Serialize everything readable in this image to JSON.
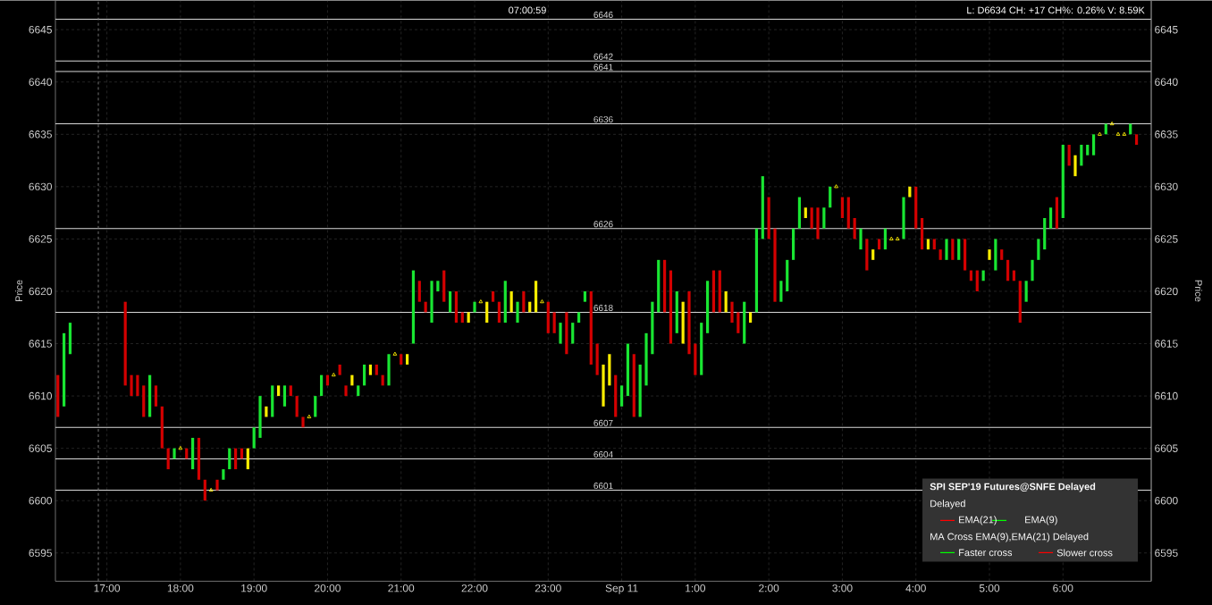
{
  "chart_data": {
    "type": "bar",
    "ylabel": "Price",
    "y2label": "Price",
    "annotations": [
      "07:00:59",
      "L: D6634 CH: +17 CH%: 0.26% V: 8.59K",
      "SPI SEP'19 Futures@SNFE Delayed",
      "Delayed",
      "EMA(21)",
      "EMA(9)",
      "MA Cross EMA(9),EMA(21) Delayed",
      "Faster cross",
      "Slower cross"
    ],
    "series": [
      {
        "x": [
          "2019-09-10T16:20",
          "2019-09-10T16:25",
          "2019-09-10T16:30",
          "2019-09-10T17:15",
          "2019-09-10T17:20",
          "2019-09-10T17:25",
          "2019-09-10T17:30",
          "2019-09-10T17:35",
          "2019-09-10T17:40",
          "2019-09-10T17:45",
          "2019-09-10T17:50",
          "2019-09-10T17:55",
          "2019-09-10T18:05",
          "2019-09-10T18:10",
          "2019-09-10T18:15",
          "2019-09-10T18:20",
          "2019-09-10T18:30",
          "2019-09-10T18:35",
          "2019-09-10T18:40",
          "2019-09-10T18:45",
          "2019-09-10T18:50",
          "2019-09-10T18:55",
          "2019-09-10T19:00",
          "2019-09-10T19:05",
          "2019-09-10T19:10",
          "2019-09-10T19:15",
          "2019-09-10T19:20",
          "2019-09-10T19:25",
          "2019-09-10T19:30",
          "2019-09-10T19:35",
          "2019-09-10T19:40",
          "2019-09-10T19:50",
          "2019-09-10T19:55",
          "2019-09-10T20:00",
          "2019-09-10T20:10",
          "2019-09-10T20:15",
          "2019-09-10T20:20",
          "2019-09-10T20:25",
          "2019-09-10T20:30",
          "2019-09-10T20:35",
          "2019-09-10T20:40",
          "2019-09-10T20:45",
          "2019-09-10T20:50",
          "2019-09-10T21:00",
          "2019-09-10T21:05",
          "2019-09-10T21:10",
          "2019-09-10T21:15",
          "2019-09-10T21:20",
          "2019-09-10T21:25",
          "2019-09-10T21:30",
          "2019-09-10T21:35",
          "2019-09-10T21:40",
          "2019-09-10T21:45",
          "2019-09-10T21:50",
          "2019-09-10T21:55",
          "2019-09-10T22:00",
          "2019-09-10T22:10",
          "2019-09-10T22:15",
          "2019-09-10T22:20",
          "2019-09-10T22:25",
          "2019-09-10T22:30",
          "2019-09-10T22:35",
          "2019-09-10T22:40",
          "2019-09-10T22:45",
          "2019-09-10T22:50",
          "2019-09-10T23:00",
          "2019-09-10T23:05",
          "2019-09-10T23:10",
          "2019-09-10T23:15",
          "2019-09-10T23:20",
          "2019-09-10T23:25",
          "2019-09-10T23:30",
          "2019-09-10T23:35",
          "2019-09-10T23:40",
          "2019-09-10T23:45",
          "2019-09-10T23:50",
          "2019-09-10T23:55",
          "2019-09-11T00:00",
          "2019-09-11T00:05",
          "2019-09-11T00:10",
          "2019-09-11T00:15",
          "2019-09-11T00:20",
          "2019-09-11T00:25",
          "2019-09-11T00:30",
          "2019-09-11T00:35",
          "2019-09-11T00:40",
          "2019-09-11T00:45",
          "2019-09-11T00:50",
          "2019-09-11T00:55",
          "2019-09-11T01:00",
          "2019-09-11T01:05",
          "2019-09-11T01:10",
          "2019-09-11T01:15",
          "2019-09-11T01:20",
          "2019-09-11T01:25",
          "2019-09-11T01:30",
          "2019-09-11T01:35",
          "2019-09-11T01:40",
          "2019-09-11T01:45",
          "2019-09-11T01:50",
          "2019-09-11T01:55",
          "2019-09-11T02:00",
          "2019-09-11T02:05",
          "2019-09-11T02:10",
          "2019-09-11T02:15",
          "2019-09-11T02:20",
          "2019-09-11T02:25",
          "2019-09-11T02:30",
          "2019-09-11T02:35",
          "2019-09-11T02:40",
          "2019-09-11T02:45",
          "2019-09-11T02:50",
          "2019-09-11T03:00",
          "2019-09-11T03:05",
          "2019-09-11T03:10",
          "2019-09-11T03:15",
          "2019-09-11T03:20",
          "2019-09-11T03:25",
          "2019-09-11T03:30",
          "2019-09-11T03:35",
          "2019-09-11T03:50",
          "2019-09-11T03:55",
          "2019-09-11T04:00",
          "2019-09-11T04:05",
          "2019-09-11T04:10",
          "2019-09-11T04:15",
          "2019-09-11T04:20",
          "2019-09-11T04:25",
          "2019-09-11T04:30",
          "2019-09-11T04:35",
          "2019-09-11T04:40",
          "2019-09-11T04:45",
          "2019-09-11T04:50",
          "2019-09-11T04:55",
          "2019-09-11T05:00",
          "2019-09-11T05:05",
          "2019-09-11T05:10",
          "2019-09-11T05:15",
          "2019-09-11T05:20",
          "2019-09-11T05:25",
          "2019-09-11T05:30",
          "2019-09-11T05:35",
          "2019-09-11T05:40",
          "2019-09-11T05:45",
          "2019-09-11T05:50",
          "2019-09-11T05:55",
          "2019-09-11T06:00",
          "2019-09-11T06:05",
          "2019-09-11T06:10",
          "2019-09-11T06:15",
          "2019-09-11T06:20",
          "2019-09-11T06:25",
          "2019-09-11T06:35",
          "2019-09-11T06:55",
          "2019-09-11T07:00"
        ],
        "base": [
          6608,
          6609,
          6614,
          6611,
          6610,
          6610,
          6608,
          6608,
          6609,
          6605,
          6603,
          6604,
          6604,
          6603,
          6602,
          6600,
          6601,
          6602,
          6603,
          6603,
          6604,
          6603,
          6605,
          6606,
          6608,
          6608,
          6610,
          6609,
          6610,
          6608,
          6607,
          6608,
          6610,
          6611,
          6612,
          6610,
          6611,
          6610,
          6611,
          6612,
          6612,
          6611,
          6611,
          6613,
          6613,
          6615,
          6619,
          6618,
          6617,
          6620,
          6619,
          6618,
          6617,
          6617,
          6617,
          6618,
          6617,
          6619,
          6617,
          6617,
          6618,
          6617,
          6618,
          6618,
          6618,
          6616,
          6616,
          6615,
          6614,
          6615,
          6617,
          6619,
          6613,
          6612,
          6609,
          6611,
          6608,
          6609,
          6610,
          6608,
          6608,
          6611,
          6614,
          6618,
          6618,
          6615,
          6616,
          6615,
          6614,
          6612,
          6612,
          6616,
          6618,
          6618,
          6618,
          6617,
          6616,
          6615,
          6617,
          6618,
          6625,
          6625,
          6619,
          6619,
          6620,
          6623,
          6626,
          6627,
          6626,
          6625,
          6626,
          6628,
          6627,
          6626,
          6625,
          6624,
          6622,
          6623,
          6624,
          6624,
          6625,
          6629,
          6626,
          6624,
          6624,
          6624,
          6623,
          6623,
          6623,
          6623,
          6622,
          6621,
          6620,
          6621,
          6623,
          6622,
          6623,
          6621,
          6621,
          6617,
          6619,
          6621,
          6623,
          6624,
          6626,
          6626,
          6627,
          6632,
          6631,
          6632,
          6633,
          6633,
          6635,
          6635,
          6634
        ],
        "values": [
          4,
          7,
          3,
          8,
          2,
          2,
          3,
          4,
          2,
          4,
          2,
          1,
          1,
          3,
          4,
          2,
          1,
          1,
          2,
          2,
          1,
          2,
          2,
          4,
          1,
          3,
          1,
          2,
          1,
          2,
          1,
          2,
          2,
          1,
          1,
          1,
          1,
          1,
          2,
          1,
          1,
          1,
          3,
          1,
          1,
          7,
          2,
          1,
          4,
          1,
          3,
          2,
          3,
          1,
          1,
          1,
          2,
          1,
          2,
          4,
          2,
          2,
          2,
          1,
          3,
          3,
          2,
          2,
          4,
          2,
          1,
          1,
          7,
          3,
          4,
          3,
          4,
          2,
          5,
          6,
          5,
          5,
          5,
          5,
          5,
          7,
          4,
          4,
          6,
          3,
          5,
          5,
          4,
          4,
          2,
          2,
          2,
          4,
          1,
          8,
          6,
          4,
          7,
          2,
          3,
          3,
          3,
          1,
          2,
          3,
          2,
          2,
          2,
          3,
          2,
          2,
          3,
          1,
          1,
          2,
          4,
          1,
          4,
          3,
          1,
          1,
          1,
          2,
          2,
          2,
          3,
          1,
          2,
          1,
          1,
          3,
          1,
          2,
          1,
          4,
          2,
          2,
          2,
          3,
          2,
          3,
          7,
          2,
          2,
          2,
          1,
          2,
          1,
          1,
          1
        ],
        "colors": [
          "#d40000",
          "#19e632",
          "#19e632",
          "#d40000",
          "#d40000",
          "#d40000",
          "#d40000",
          "#19e632",
          "#d40000",
          "#d40000",
          "#d40000",
          "#19e632",
          "#d40000",
          "#19e632",
          "#d40000",
          "#d40000",
          "#d40000",
          "#19e632",
          "#19e632",
          "#d40000",
          "#d40000",
          "#ffee00",
          "#19e632",
          "#19e632",
          "#ffee00",
          "#19e632",
          "#ffee00",
          "#19e632",
          "#d40000",
          "#d40000",
          "#d40000",
          "#19e632",
          "#19e632",
          "#d40000",
          "#d40000",
          "#d40000",
          "#ffee00",
          "#19e632",
          "#19e632",
          "#ffee00",
          "#d40000",
          "#d40000",
          "#19e632",
          "#d40000",
          "#ffee00",
          "#19e632",
          "#d40000",
          "#d40000",
          "#19e632",
          "#19e632",
          "#d40000",
          "#19e632",
          "#d40000",
          "#d40000",
          "#ffee00",
          "#19e632",
          "#ffee00",
          "#d40000",
          "#d40000",
          "#19e632",
          "#ffee00",
          "#19e632",
          "#d40000",
          "#ffee00",
          "#ffee00",
          "#d40000",
          "#d40000",
          "#19e632",
          "#d40000",
          "#19e632",
          "#19e632",
          "#19e632",
          "#d40000",
          "#d40000",
          "#ffee00",
          "#ffee00",
          "#d40000",
          "#19e632",
          "#19e632",
          "#d40000",
          "#19e632",
          "#19e632",
          "#19e632",
          "#19e632",
          "#d40000",
          "#d40000",
          "#19e632",
          "#ffee00",
          "#d40000",
          "#d40000",
          "#19e632",
          "#19e632",
          "#d40000",
          "#d40000",
          "#ffee00",
          "#d40000",
          "#d40000",
          "#19e632",
          "#ffee00",
          "#19e632",
          "#19e632",
          "#d40000",
          "#d40000",
          "#19e632",
          "#19e632",
          "#19e632",
          "#19e632",
          "#ffee00",
          "#d40000",
          "#d40000",
          "#19e632",
          "#19e632",
          "#d40000",
          "#d40000",
          "#d40000",
          "#19e632",
          "#d40000",
          "#ffee00",
          "#d40000",
          "#19e632",
          "#19e632",
          "#ffee00",
          "#d40000",
          "#d40000",
          "#ffee00",
          "#d40000",
          "#d40000",
          "#19e632",
          "#d40000",
          "#19e632",
          "#d40000",
          "#d40000",
          "#d40000",
          "#19e632",
          "#ffee00",
          "#19e632",
          "#d40000",
          "#d40000",
          "#d40000",
          "#d40000",
          "#19e632",
          "#19e632",
          "#19e632",
          "#19e632",
          "#19e632",
          "#d40000",
          "#19e632",
          "#d40000",
          "#ffee00",
          "#19e632",
          "#19e632",
          "#19e632",
          "#19e632",
          "#19e632",
          "#d40000"
        ]
      },
      {
        "type": "scatter",
        "color": "#ffee00",
        "marker": "triangle",
        "x": [
          "2019-09-10T18:00",
          "2019-09-10T18:25",
          "2019-09-10T19:45",
          "2019-09-10T20:05",
          "2019-09-10T20:55",
          "2019-09-10T22:05",
          "2019-09-10T22:55",
          "2019-09-11T02:55",
          "2019-09-11T03:40",
          "2019-09-11T03:45",
          "2019-09-11T06:30",
          "2019-09-11T06:40",
          "2019-09-11T06:45",
          "2019-09-11T06:50"
        ],
        "values": [
          6605,
          6601,
          6608,
          6612,
          6614,
          6619,
          6619,
          6630,
          6625,
          6625,
          6635,
          6636,
          6635,
          6635
        ]
      }
    ],
    "xlim": [
      "2019-09-10T16:18",
      "2019-09-11T07:12"
    ],
    "xticks": [
      {
        "value": "2019-09-10T17:00",
        "label": "17:00"
      },
      {
        "value": "2019-09-10T18:00",
        "label": "18:00"
      },
      {
        "value": "2019-09-10T19:00",
        "label": "19:00"
      },
      {
        "value": "2019-09-10T20:00",
        "label": "20:00"
      },
      {
        "value": "2019-09-10T21:00",
        "label": "21:00"
      },
      {
        "value": "2019-09-10T22:00",
        "label": "22:00"
      },
      {
        "value": "2019-09-10T23:00",
        "label": "23:00"
      },
      {
        "value": "2019-09-11T00:00",
        "label": "Sep 11"
      },
      {
        "value": "2019-09-11T01:00",
        "label": "1:00"
      },
      {
        "value": "2019-09-11T02:00",
        "label": "2:00"
      },
      {
        "value": "2019-09-11T03:00",
        "label": "3:00"
      },
      {
        "value": "2019-09-11T04:00",
        "label": "4:00"
      },
      {
        "value": "2019-09-11T05:00",
        "label": "5:00"
      },
      {
        "value": "2019-09-11T06:00",
        "label": "6:00"
      }
    ],
    "ylim": [
      6592.3,
      6647.8
    ],
    "yticks": [
      6595,
      6600,
      6605,
      6610,
      6615,
      6620,
      6625,
      6630,
      6635,
      6640,
      6645
    ],
    "y2lim": [
      6592.3,
      6647.8
    ],
    "y2ticks": [
      6595,
      6600,
      6605,
      6610,
      6615,
      6620,
      6625,
      6630,
      6635,
      6640,
      6645
    ],
    "ref_lines": [
      {
        "axis": "y",
        "value": 6646,
        "label": "6646",
        "color": "#d8d8d8"
      },
      {
        "axis": "y",
        "value": 6642,
        "label": "6642",
        "color": "#d8d8d8"
      },
      {
        "axis": "y",
        "value": 6641,
        "label": "6641",
        "color": "#d8d8d8"
      },
      {
        "axis": "y",
        "value": 6636,
        "label": "6636",
        "color": "#d8d8d8"
      },
      {
        "axis": "y",
        "value": 6626,
        "label": "6626",
        "color": "#d8d8d8"
      },
      {
        "axis": "y",
        "value": 6618,
        "label": "6618",
        "color": "#d8d8d8"
      },
      {
        "axis": "y",
        "value": 6607,
        "label": "6607",
        "color": "#d8d8d8"
      },
      {
        "axis": "y",
        "value": 6604,
        "label": "6604",
        "color": "#d8d8d8"
      },
      {
        "axis": "y",
        "value": 6601,
        "label": "6601",
        "color": "#d8d8d8"
      },
      {
        "axis": "x",
        "value": "2019-09-10T16:53",
        "label": null,
        "color": "#808080",
        "line_style": "dashed"
      }
    ],
    "grid": true
  }
}
